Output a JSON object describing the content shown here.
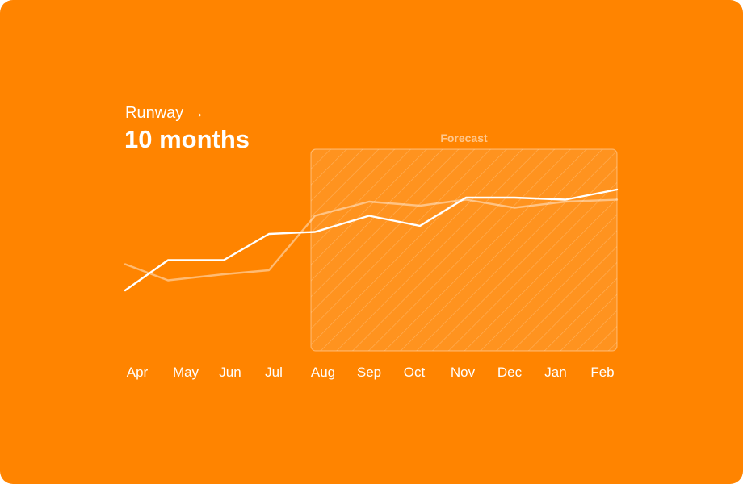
{
  "runway": {
    "label": "Runway",
    "arrow_icon": "arrow-right-icon",
    "value": "10 months"
  },
  "colors": {
    "background": "#ff8400",
    "primary_line": "#ffffff",
    "secondary_line": "rgba(255,255,255,0.45)",
    "forecast_fill": "rgba(255,255,255,0.12)"
  },
  "chart_data": {
    "type": "line",
    "title": "",
    "xlabel": "",
    "ylabel": "",
    "categories": [
      "Apr",
      "May",
      "Jun",
      "Jul",
      "Aug",
      "Sep",
      "Oct",
      "Nov",
      "Dec",
      "Jan",
      "Feb"
    ],
    "ylim": [
      0,
      100
    ],
    "grid": false,
    "forecast": {
      "label": "Forecast",
      "start": "Aug",
      "end": "Feb"
    },
    "series": [
      {
        "values": [
          {
            "x": "Apr",
            "y": 30
          },
          {
            "x": "May",
            "y": 45
          },
          {
            "x": "Jun",
            "y": 45
          },
          {
            "x": "Jul",
            "y": 58
          },
          {
            "x": "Aug",
            "y": 59
          },
          {
            "x": "Sep",
            "y": 67
          },
          {
            "x": "Oct",
            "y": 62
          },
          {
            "x": "Nov",
            "y": 76
          },
          {
            "x": "Dec",
            "y": 76
          },
          {
            "x": "Jan",
            "y": 75
          },
          {
            "x": "Feb",
            "y": 80
          }
        ]
      },
      {
        "values": [
          {
            "x": "Apr",
            "y": 43
          },
          {
            "x": "May",
            "y": 35
          },
          {
            "x": "Jun",
            "y": 38
          },
          {
            "x": "Jul",
            "y": 40
          },
          {
            "x": "Aug",
            "y": 67
          },
          {
            "x": "Sep",
            "y": 74
          },
          {
            "x": "Oct",
            "y": 72
          },
          {
            "x": "Nov",
            "y": 75
          },
          {
            "x": "Dec",
            "y": 71
          },
          {
            "x": "Jan",
            "y": 74
          },
          {
            "x": "Feb",
            "y": 75
          }
        ]
      }
    ]
  }
}
